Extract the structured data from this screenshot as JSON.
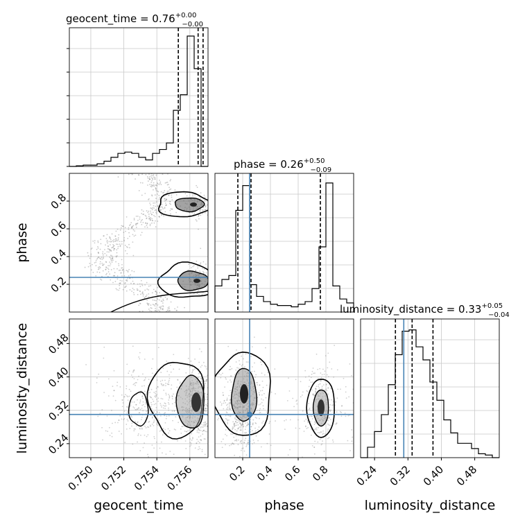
{
  "chart_data": {
    "type": "corner",
    "parameters": [
      "geocent_time",
      "phase",
      "luminosity_distance"
    ],
    "colors": {
      "hist": "#000000",
      "truth": "#4682b4",
      "quantile": "#000000",
      "scatter": "#888888",
      "grid": "#c8c8c8"
    },
    "titles": [
      {
        "text": "geocent_time = 0.76",
        "plus": "+0.00",
        "minus": "−0.00"
      },
      {
        "text": "phase = 0.26",
        "plus": "+0.50",
        "minus": "−0.09"
      },
      {
        "text": "luminosity_distance = 0.33",
        "plus": "+0.05",
        "minus": "−0.04"
      }
    ],
    "axis_labels": {
      "x": [
        "geocent_time",
        "phase",
        "luminosity_distance"
      ],
      "y": [
        "phase",
        "luminosity_distance"
      ]
    },
    "ticks": {
      "geocent_time": [
        "0.750",
        "0.752",
        "0.754",
        "0.756"
      ],
      "phase": [
        "0.2",
        "0.4",
        "0.6",
        "0.8"
      ],
      "luminosity_distance": [
        "0.24",
        "0.32",
        "0.40",
        "0.48"
      ]
    },
    "ranges": {
      "geocent_time": [
        0.7487,
        0.7571
      ],
      "phase": [
        0.0,
        1.0
      ],
      "luminosity_distance": [
        0.2065,
        0.5388
      ]
    },
    "truths": {
      "phase": 0.25,
      "luminosity_distance": 0.31
    },
    "quantiles": {
      "geocent_time": [
        0.7553,
        0.7565,
        0.7568
      ],
      "phase": [
        0.165,
        0.26,
        0.76
      ],
      "luminosity_distance": [
        0.29,
        0.33,
        0.38
      ]
    },
    "hist_geocent_time": {
      "bins": 20,
      "heights": [
        0.0,
        0.005,
        0.01,
        0.01,
        0.02,
        0.04,
        0.07,
        0.1,
        0.11,
        0.1,
        0.07,
        0.05,
        0.1,
        0.13,
        0.18,
        0.43,
        0.55,
        1.0,
        0.75,
        0.0
      ]
    },
    "hist_phase": {
      "bins": 20,
      "heights": [
        0.2,
        0.25,
        0.28,
        0.78,
        0.97,
        0.21,
        0.12,
        0.08,
        0.06,
        0.05,
        0.05,
        0.04,
        0.06,
        0.08,
        0.18,
        0.5,
        0.99,
        0.2,
        0.1,
        0.07
      ]
    },
    "hist_luminosity_distance": {
      "bins": 20,
      "heights": [
        0.0,
        0.08,
        0.2,
        0.33,
        0.56,
        0.79,
        0.97,
        0.98,
        0.85,
        0.75,
        0.58,
        0.44,
        0.29,
        0.19,
        0.11,
        0.11,
        0.07,
        0.03,
        0.02,
        0.0
      ]
    }
  }
}
